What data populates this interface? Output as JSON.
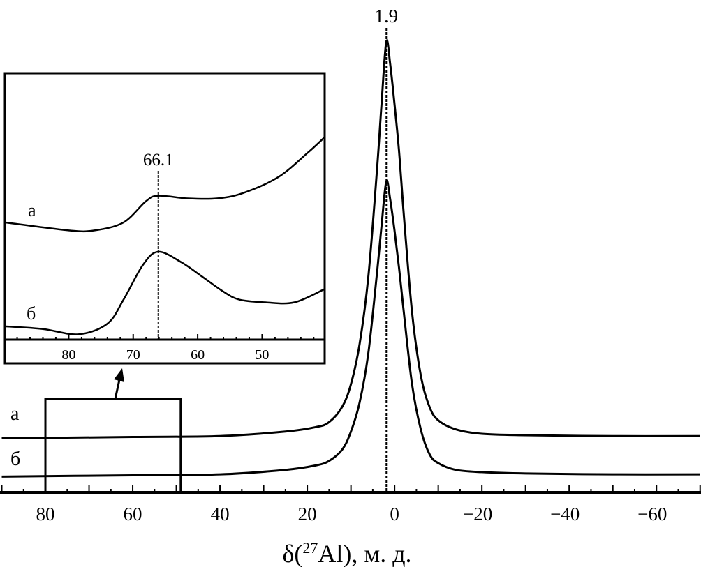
{
  "chart_data": [
    {
      "type": "line",
      "xlabel": "δ(27Al), м. д.",
      "xlabel_parts": {
        "pre": "δ(",
        "sup": "27",
        "post": "Al), м. д."
      },
      "x_reversed": true,
      "xlim": [
        90.4,
        -70.2
      ],
      "ylim": [
        0,
        100
      ],
      "x_ticks": [
        80,
        60,
        40,
        20,
        0,
        -20,
        -40,
        -60
      ],
      "x_tick_labels": [
        "80",
        "60",
        "40",
        "20",
        "0",
        "−20",
        "−40",
        "−60"
      ],
      "grid": false,
      "peak_annotation": {
        "x": 1.9,
        "label": "1.9"
      },
      "zoom_region": {
        "x": [
          80,
          49
        ]
      },
      "series": [
        {
          "name": "а",
          "x": [
            90,
            60,
            40,
            25,
            18,
            15,
            12,
            10,
            8,
            6,
            4,
            3,
            1.9,
            1,
            0,
            -1,
            -2,
            -4,
            -6,
            -8,
            -10,
            -14,
            -20,
            -30,
            -50,
            -70
          ],
          "y": [
            12.0,
            12.3,
            12.5,
            13.5,
            14.5,
            15.6,
            19,
            24,
            33,
            48,
            72,
            86,
            100,
            95,
            86,
            76,
            63,
            40,
            26,
            19,
            16,
            14,
            13,
            12.7,
            12.5,
            12.5
          ]
        },
        {
          "name": "б",
          "x": [
            90,
            60,
            40,
            25,
            18,
            15,
            12,
            10,
            8,
            6,
            4,
            3,
            1.9,
            1,
            0,
            -1,
            -2,
            -4,
            -6,
            -8,
            -10,
            -14,
            -20,
            -30,
            -50,
            -70
          ],
          "y": [
            3.5,
            3.8,
            4,
            5,
            6,
            7,
            9.5,
            13.5,
            20,
            31,
            49,
            59,
            69,
            65,
            58,
            50,
            41,
            24,
            14,
            8.5,
            6.5,
            5,
            4.5,
            4.2,
            4,
            4
          ]
        }
      ]
    },
    {
      "type": "line",
      "inset": true,
      "x_reversed": true,
      "xlim": [
        89.9,
        40.3
      ],
      "ylim": [
        0,
        100
      ],
      "x_ticks": [
        80,
        70,
        60,
        50
      ],
      "x_tick_labels": [
        "80",
        "70",
        "60",
        "50"
      ],
      "grid": false,
      "peak_annotation": {
        "x": 66.1,
        "label": "66.1"
      },
      "series": [
        {
          "name": "а",
          "x": [
            89.9,
            80,
            76,
            71.5,
            68,
            66.1,
            61.5,
            57,
            53,
            47.5,
            43,
            40.3
          ],
          "y": [
            44,
            41,
            41,
            44,
            52,
            54,
            53,
            53,
            55,
            61,
            70,
            76
          ]
        },
        {
          "name": "б",
          "x": [
            89.9,
            84,
            78.5,
            74,
            71.5,
            68.5,
            66.1,
            62.5,
            59.5,
            56,
            53.5,
            49.5,
            45,
            40.3
          ],
          "y": [
            5,
            4,
            2,
            6,
            15,
            28,
            33,
            29,
            24,
            18,
            15,
            14,
            14,
            19
          ]
        }
      ]
    }
  ]
}
